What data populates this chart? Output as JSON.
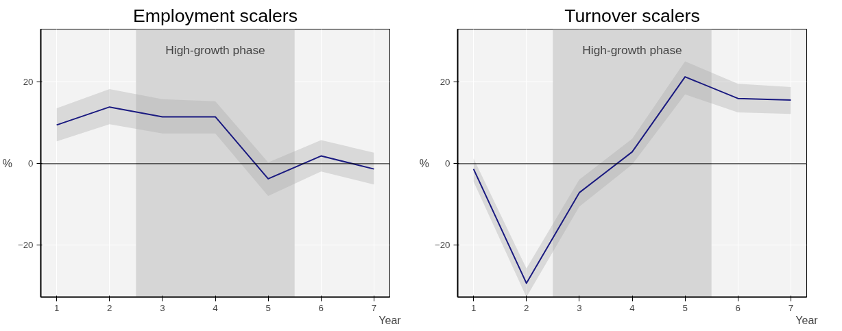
{
  "chart_data": [
    {
      "type": "line",
      "title": "Employment scalers",
      "xlabel": "Year",
      "ylabel": "%",
      "x": [
        1,
        2,
        3,
        4,
        5,
        6,
        7
      ],
      "series": [
        {
          "color": "#1a1a80",
          "values": [
            9.5,
            13.9,
            11.5,
            11.5,
            -3.7,
            1.9,
            -1.3
          ],
          "lower": [
            5.5,
            9.7,
            7.4,
            7.4,
            -7.9,
            -1.9,
            -5.1
          ],
          "upper": [
            13.6,
            18.3,
            15.8,
            15.3,
            0.3,
            5.8,
            2.7
          ]
        }
      ],
      "xlim": [
        0.7,
        7.3
      ],
      "ylim": [
        -32.7,
        33
      ],
      "xticks": [
        1,
        2,
        3,
        4,
        5,
        6,
        7
      ],
      "yticks": [
        -20,
        0,
        20
      ],
      "grid": true,
      "line_style": "solid",
      "ref_lines": [
        {
          "axis": "y",
          "value": 0,
          "color": "#000000"
        }
      ],
      "bands": [
        {
          "axis": "x",
          "from": 2.5,
          "to": 5.5,
          "label": "High-growth phase",
          "color": "#d6d6d6"
        }
      ]
    },
    {
      "type": "line",
      "title": "Turnover scalers",
      "xlabel": "Year",
      "ylabel": "%",
      "x": [
        1,
        2,
        3,
        4,
        5,
        6,
        7
      ],
      "series": [
        {
          "color": "#1a1a80",
          "values": [
            -1.3,
            -29.3,
            -7.1,
            2.9,
            21.3,
            16,
            15.6
          ],
          "lower": [
            -4.4,
            -32.7,
            -10.5,
            -0.2,
            17,
            12.6,
            12.2
          ],
          "upper": [
            1.3,
            -25.7,
            -3.9,
            6.1,
            25.1,
            19.6,
            18.8
          ]
        }
      ],
      "xlim": [
        0.7,
        7.3
      ],
      "ylim": [
        -32.7,
        33
      ],
      "xticks": [
        1,
        2,
        3,
        4,
        5,
        6,
        7
      ],
      "yticks": [
        -20,
        0,
        20
      ],
      "grid": true,
      "line_style": "solid",
      "ref_lines": [
        {
          "axis": "y",
          "value": 0,
          "color": "#000000"
        }
      ],
      "bands": [
        {
          "axis": "x",
          "from": 2.5,
          "to": 5.5,
          "label": "High-growth phase",
          "color": "#d6d6d6"
        }
      ]
    }
  ]
}
